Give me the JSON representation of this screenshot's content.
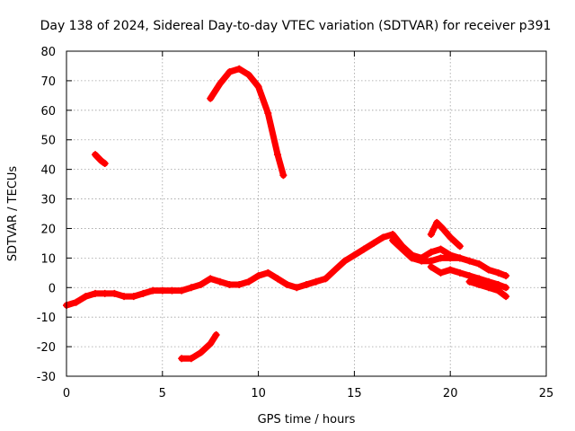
{
  "chart_data": {
    "type": "scatter",
    "title": "Day 138 of 2024, Sidereal Day-to-day VTEC variation (SDTVAR) for receiver p391",
    "xlabel": "GPS time / hours",
    "ylabel": "SDTVAR / TECUs",
    "xlim": [
      0,
      25
    ],
    "ylim": [
      -30,
      80
    ],
    "x_ticks": [
      0,
      5,
      10,
      15,
      20,
      25
    ],
    "y_ticks": [
      -30,
      -20,
      -10,
      0,
      10,
      20,
      30,
      40,
      50,
      60,
      70,
      80
    ],
    "grid": true,
    "marker": "plus",
    "color": "#ff0000",
    "series": [
      {
        "name": "track-main",
        "x": [
          0.0,
          0.5,
          1.0,
          1.5,
          2.0,
          2.5,
          3.0,
          3.5,
          4.0,
          4.5,
          5.0,
          5.5,
          6.0,
          6.5,
          7.0,
          7.5,
          8.0,
          8.5,
          9.0,
          9.5,
          10.0,
          10.5,
          11.0,
          11.5,
          12.0,
          12.5,
          13.0,
          13.5,
          14.0,
          14.5,
          15.0,
          15.5,
          16.0,
          16.5,
          17.0,
          17.5,
          18.0,
          18.5,
          19.0,
          19.5,
          20.0,
          20.5
        ],
        "y": [
          -6,
          -5,
          -3,
          -2,
          -2,
          -2,
          -3,
          -3,
          -2,
          -1,
          -1,
          -1,
          -1,
          0,
          1,
          3,
          2,
          1,
          1,
          2,
          4,
          5,
          3,
          1,
          0,
          1,
          2,
          3,
          6,
          9,
          11,
          13,
          15,
          17,
          18,
          14,
          11,
          10,
          12,
          13,
          11,
          10
        ]
      },
      {
        "name": "track-upper-low",
        "x": [
          17.0,
          17.5,
          18.0,
          18.5,
          19.0,
          19.5,
          20.0,
          20.5,
          21.0,
          21.5,
          22.0,
          22.5,
          22.9
        ],
        "y": [
          16,
          13,
          10,
          9,
          9,
          10,
          10,
          10,
          9,
          8,
          6,
          5,
          4
        ]
      },
      {
        "name": "track-lower",
        "x": [
          19.0,
          19.5,
          20.0,
          20.5,
          21.0,
          21.5,
          22.0,
          22.5,
          22.9
        ],
        "y": [
          7,
          5,
          6,
          5,
          4,
          3,
          2,
          1,
          0
        ]
      },
      {
        "name": "track-tail",
        "x": [
          21.0,
          21.5,
          22.0,
          22.5,
          22.9
        ],
        "y": [
          2,
          1,
          0,
          -1,
          -3
        ]
      },
      {
        "name": "track-side",
        "x": [
          19.0,
          19.3,
          19.6,
          20.0,
          20.5
        ],
        "y": [
          18,
          22,
          20,
          17,
          14
        ]
      },
      {
        "name": "arc-high",
        "x": [
          7.5,
          8.0,
          8.5,
          9.0,
          9.5,
          10.0,
          10.5,
          11.0,
          11.3
        ],
        "y": [
          64,
          69,
          73,
          74,
          72,
          68,
          59,
          45,
          38
        ]
      },
      {
        "name": "segment-neg",
        "x": [
          6.0,
          6.5,
          7.0,
          7.5,
          7.8
        ],
        "y": [
          -24,
          -24,
          -22,
          -19,
          -16
        ]
      },
      {
        "name": "segment-40",
        "x": [
          1.5,
          1.8,
          2.0
        ],
        "y": [
          45,
          43,
          42
        ]
      }
    ]
  }
}
